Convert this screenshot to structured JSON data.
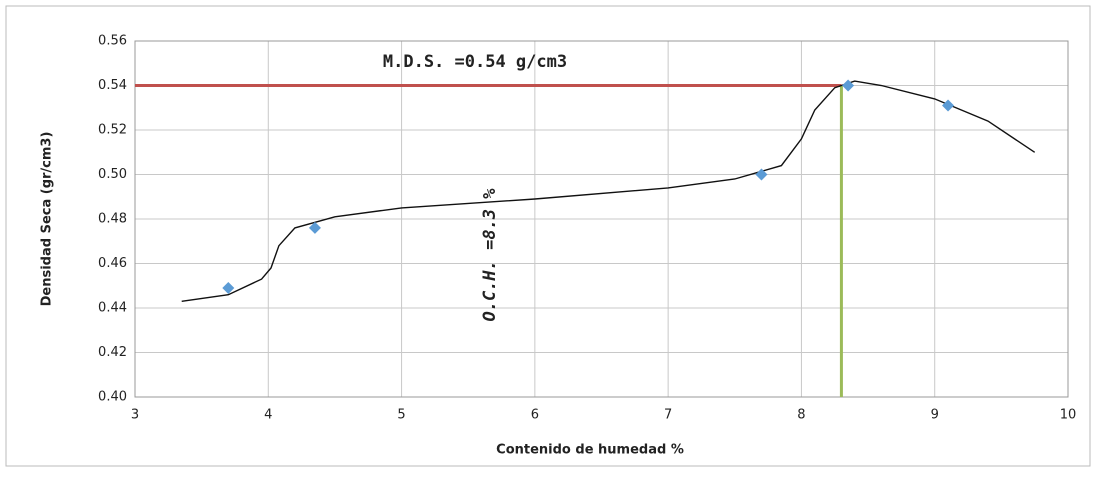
{
  "chart_data": {
    "type": "scatter",
    "x_label": "Contenido de humedad %",
    "y_label": "Densidad Seca (gr/cm3)",
    "x": [
      3.7,
      4.35,
      7.7,
      8.35,
      9.1
    ],
    "values": [
      0.449,
      0.476,
      0.5,
      0.54,
      0.531
    ],
    "color": "#5b9bd5",
    "curve": {
      "color": "#111111",
      "x": [
        3.35,
        3.7,
        3.95,
        4.02,
        4.08,
        4.2,
        4.5,
        5,
        6,
        7,
        7.5,
        7.85,
        8.0,
        8.1,
        8.25,
        8.4,
        8.6,
        9.0,
        9.4,
        9.75
      ],
      "values": [
        0.443,
        0.446,
        0.453,
        0.458,
        0.468,
        0.476,
        0.481,
        0.485,
        0.489,
        0.494,
        0.498,
        0.504,
        0.516,
        0.529,
        0.539,
        0.542,
        0.54,
        0.534,
        0.524,
        0.51
      ]
    },
    "hline": {
      "value": 0.54,
      "color": "#c0504d",
      "label": "M.D.S. =0.54 g/cm3"
    },
    "vline": {
      "value": 8.3,
      "color": "#9bbb59",
      "label": "O.C.H. =8.3 %"
    },
    "xlim": [
      3,
      10
    ],
    "xticks": [
      3,
      4,
      5,
      6,
      7,
      8,
      9,
      10
    ],
    "ylim": [
      0.4,
      0.56
    ],
    "yticks": [
      {
        "value": 0.4,
        "label": "0.40"
      },
      0.42,
      0.44,
      0.46,
      0.48,
      {
        "value": 0.5,
        "label": "0.50"
      },
      0.52,
      0.54,
      0.56
    ],
    "grid": true
  }
}
